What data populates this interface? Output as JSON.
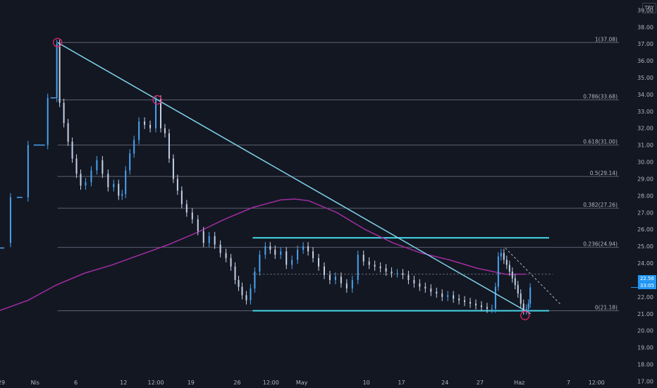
{
  "currency": "TRY",
  "last_price": "22.56",
  "countdown": "33:05",
  "colors": {
    "background": "#131722",
    "candle": "#c5d2e6",
    "candle_up": "#4aa3f0",
    "trendline": "#7fd4ec",
    "channel": "#44d6e8",
    "moving_average": "#a22da1",
    "fib_line": "#5d6270",
    "price_badge": "#2196f3",
    "circle": "#e0246c"
  },
  "chart_data": {
    "type": "candlestick",
    "y_axis": {
      "range": [
        16.6,
        39.6
      ],
      "position": "right",
      "ticks": [
        "17.00",
        "18.00",
        "19.00",
        "20.00",
        "21.00",
        "22.00",
        "23.00",
        "24.00",
        "25.00",
        "26.00",
        "27.00",
        "28.00",
        "29.00",
        "30.00",
        "31.00",
        "32.00",
        "33.00",
        "34.00",
        "35.00",
        "36.00",
        "37.00",
        "38.00",
        "39.00"
      ]
    },
    "x_axis": {
      "ticks": [
        "29",
        "Nis",
        "6",
        "12",
        "12:00",
        "19",
        "26",
        "12:00",
        "May",
        "10",
        "17",
        "24",
        "27",
        "Haz",
        "7",
        "12:00"
      ]
    },
    "fibonacci": [
      {
        "label": "1(37.08)",
        "price": 37.08
      },
      {
        "label": "0.786(33.68)",
        "price": 33.68
      },
      {
        "label": "0.618(31.00)",
        "price": 31.0
      },
      {
        "label": "0.5(29.14)",
        "price": 29.14
      },
      {
        "label": "0.382(27.26)",
        "price": 27.26
      },
      {
        "label": "0.236(24.94)",
        "price": 24.94
      },
      {
        "label": "0(21.18)",
        "price": 21.18
      }
    ],
    "horizontal_levels": [
      {
        "name": "channel top",
        "price": 25.5
      },
      {
        "name": "channel bottom",
        "price": 21.18
      }
    ],
    "dotted_level": 23.35,
    "series": [
      {
        "name": "price",
        "kind": "candles",
        "path": [
          [
            0.0,
            24.9
          ],
          [
            0.3,
            25.2
          ],
          [
            1.2,
            27.9
          ],
          [
            1.6,
            27.9
          ],
          [
            2.4,
            31.0
          ],
          [
            3.2,
            31.0
          ],
          [
            3.6,
            33.8
          ],
          [
            4.0,
            33.8
          ],
          [
            4.1,
            37.0
          ],
          [
            4.4,
            33.5
          ],
          [
            4.7,
            32.3
          ],
          [
            5.0,
            31.2
          ],
          [
            5.3,
            30.2
          ],
          [
            5.6,
            29.3
          ],
          [
            5.9,
            28.6
          ],
          [
            6.3,
            28.8
          ],
          [
            6.7,
            29.5
          ],
          [
            7.1,
            30.1
          ],
          [
            7.5,
            29.3
          ],
          [
            7.9,
            28.5
          ],
          [
            8.3,
            28.7
          ],
          [
            8.6,
            28.0
          ],
          [
            8.8,
            28.1
          ],
          [
            9.1,
            29.5
          ],
          [
            9.4,
            30.5
          ],
          [
            9.7,
            31.3
          ],
          [
            10.1,
            32.4
          ],
          [
            10.5,
            32.2
          ],
          [
            10.9,
            32.0
          ],
          [
            11.3,
            33.7
          ],
          [
            11.6,
            32.0
          ],
          [
            11.9,
            31.7
          ],
          [
            12.2,
            30.2
          ],
          [
            12.5,
            29.0
          ],
          [
            12.8,
            28.3
          ],
          [
            13.1,
            27.5
          ],
          [
            13.5,
            27.0
          ],
          [
            13.9,
            26.6
          ],
          [
            14.3,
            25.9
          ],
          [
            14.7,
            25.2
          ],
          [
            15.1,
            25.6
          ],
          [
            15.5,
            25.1
          ],
          [
            15.9,
            24.6
          ],
          [
            16.3,
            24.3
          ],
          [
            16.6,
            23.8
          ],
          [
            16.9,
            23.0
          ],
          [
            17.1,
            22.6
          ],
          [
            17.4,
            22.1
          ],
          [
            17.7,
            21.8
          ],
          [
            18.0,
            22.5
          ],
          [
            18.3,
            23.5
          ],
          [
            18.7,
            24.5
          ],
          [
            19.1,
            25.0
          ],
          [
            19.4,
            24.8
          ],
          [
            19.8,
            24.5
          ],
          [
            20.2,
            24.7
          ],
          [
            20.6,
            23.9
          ],
          [
            21.0,
            24.2
          ],
          [
            21.4,
            24.8
          ],
          [
            21.8,
            25.0
          ],
          [
            22.1,
            24.7
          ],
          [
            22.5,
            24.3
          ],
          [
            22.9,
            23.8
          ],
          [
            23.3,
            23.3
          ],
          [
            23.7,
            23.0
          ],
          [
            24.1,
            23.2
          ],
          [
            24.5,
            22.8
          ],
          [
            24.9,
            22.5
          ],
          [
            25.3,
            23.0
          ],
          [
            25.7,
            24.5
          ],
          [
            26.1,
            24.1
          ],
          [
            26.5,
            23.9
          ],
          [
            26.9,
            23.8
          ],
          [
            27.3,
            23.7
          ],
          [
            27.7,
            23.5
          ],
          [
            28.1,
            23.4
          ],
          [
            28.5,
            23.4
          ],
          [
            28.9,
            23.3
          ],
          [
            29.3,
            23.0
          ],
          [
            29.7,
            22.8
          ],
          [
            30.1,
            22.6
          ],
          [
            30.5,
            22.5
          ],
          [
            30.9,
            22.3
          ],
          [
            31.3,
            22.2
          ],
          [
            31.7,
            22.0
          ],
          [
            32.1,
            22.1
          ],
          [
            32.5,
            21.9
          ],
          [
            32.9,
            21.8
          ],
          [
            33.3,
            21.7
          ],
          [
            33.7,
            21.6
          ],
          [
            34.1,
            21.5
          ],
          [
            34.5,
            21.4
          ],
          [
            34.9,
            21.3
          ],
          [
            35.2,
            21.3
          ],
          [
            35.4,
            22.6
          ],
          [
            35.6,
            24.4
          ],
          [
            35.8,
            24.6
          ],
          [
            36.0,
            24.2
          ],
          [
            36.2,
            23.9
          ],
          [
            36.4,
            23.5
          ],
          [
            36.6,
            23.1
          ],
          [
            36.8,
            22.7
          ],
          [
            37.0,
            22.2
          ],
          [
            37.2,
            21.6
          ],
          [
            37.4,
            21.2
          ],
          [
            37.6,
            21.3
          ],
          [
            37.7,
            21.6
          ],
          [
            37.85,
            22.56
          ]
        ]
      },
      {
        "name": "moving average",
        "kind": "line",
        "path": [
          [
            0,
            21.2
          ],
          [
            2,
            21.8
          ],
          [
            4,
            22.7
          ],
          [
            6,
            23.4
          ],
          [
            8,
            23.9
          ],
          [
            10,
            24.5
          ],
          [
            12,
            25.1
          ],
          [
            14,
            25.8
          ],
          [
            16,
            26.6
          ],
          [
            18,
            27.3
          ],
          [
            20,
            27.75
          ],
          [
            21,
            27.8
          ],
          [
            22,
            27.7
          ],
          [
            24,
            27.0
          ],
          [
            26,
            26.0
          ],
          [
            28,
            25.2
          ],
          [
            30,
            24.6
          ],
          [
            32,
            24.2
          ],
          [
            34,
            23.7
          ],
          [
            36,
            23.35
          ],
          [
            37.5,
            23.35
          ]
        ]
      }
    ],
    "annotations": {
      "trendline": [
        [
          4.1,
          37.08
        ],
        [
          37.8,
          21.0
        ]
      ],
      "dashed_trendline": [
        [
          36.0,
          24.9
        ],
        [
          40.0,
          21.5
        ]
      ],
      "circles": [
        [
          4.1,
          37.08
        ],
        [
          11.2,
          33.68
        ],
        [
          37.4,
          20.9
        ]
      ]
    }
  }
}
